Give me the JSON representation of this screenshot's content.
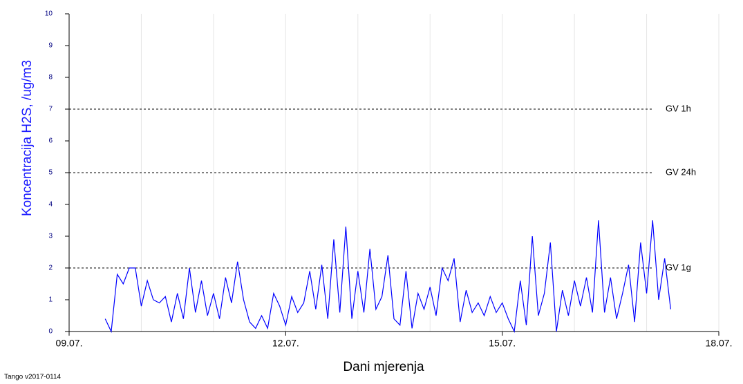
{
  "chart_data": {
    "type": "line",
    "y_label": "Koncentracija H2S, /ug/m3",
    "x_label": "Dani mjerenja",
    "footer": "Tango v2017-0114",
    "xlim": [
      0,
      216
    ],
    "xticks": [
      {
        "value": 0,
        "label": "09.07."
      },
      {
        "value": 72,
        "label": "12.07."
      },
      {
        "value": 144,
        "label": "15.07."
      },
      {
        "value": 216,
        "label": "18.07."
      }
    ],
    "xminor_ticks": [
      24,
      48,
      96,
      120,
      168,
      192
    ],
    "ylim": [
      0,
      10
    ],
    "yticks": [
      0,
      1,
      2,
      3,
      4,
      5,
      6,
      7,
      8,
      9,
      10
    ],
    "grid": true,
    "reference_lines": [
      {
        "label": "GV 1h",
        "value": 7
      },
      {
        "label": "GV 24h",
        "value": 5
      },
      {
        "label": "GV 1g",
        "value": 2
      }
    ],
    "series": [
      {
        "color": "#0000ff",
        "x": [
          12,
          14,
          16,
          18,
          20,
          22,
          24,
          26,
          28,
          30,
          32,
          34,
          36,
          38,
          40,
          42,
          44,
          46,
          48,
          50,
          52,
          54,
          56,
          58,
          60,
          62,
          64,
          66,
          68,
          70,
          72,
          74,
          76,
          78,
          80,
          82,
          84,
          86,
          88,
          90,
          92,
          94,
          96,
          98,
          100,
          102,
          104,
          106,
          108,
          110,
          112,
          114,
          116,
          118,
          120,
          122,
          124,
          126,
          128,
          130,
          132,
          134,
          136,
          138,
          140,
          142,
          144,
          146,
          148,
          150,
          152,
          154,
          156,
          158,
          160,
          162,
          164,
          166,
          168,
          170,
          172,
          174,
          176,
          178,
          180,
          182,
          184,
          186,
          188,
          190,
          192,
          194,
          196,
          198,
          200
        ],
        "values": [
          0.4,
          0.0,
          1.8,
          1.5,
          2.0,
          2.0,
          0.8,
          1.6,
          1.0,
          0.9,
          1.1,
          0.3,
          1.2,
          0.4,
          2.0,
          0.6,
          1.6,
          0.5,
          1.2,
          0.4,
          1.7,
          0.9,
          2.2,
          1.0,
          0.3,
          0.1,
          0.5,
          0.1,
          1.2,
          0.8,
          0.2,
          1.1,
          0.6,
          0.9,
          1.9,
          0.7,
          2.1,
          0.4,
          2.9,
          0.6,
          3.3,
          0.4,
          1.9,
          0.6,
          2.6,
          0.7,
          1.1,
          2.4,
          0.4,
          0.2,
          1.9,
          0.1,
          1.2,
          0.7,
          1.4,
          0.5,
          2.0,
          1.6,
          2.3,
          0.3,
          1.3,
          0.6,
          0.9,
          0.5,
          1.1,
          0.6,
          0.9,
          0.4,
          0.0,
          1.6,
          0.2,
          3.0,
          0.5,
          1.2,
          2.8,
          0.0,
          1.3,
          0.5,
          1.6,
          0.8,
          1.7,
          0.6,
          3.5,
          0.6,
          1.7,
          0.4,
          1.2,
          2.1,
          0.3,
          2.8,
          1.2,
          3.5,
          1.0,
          2.3,
          0.7
        ]
      }
    ]
  }
}
